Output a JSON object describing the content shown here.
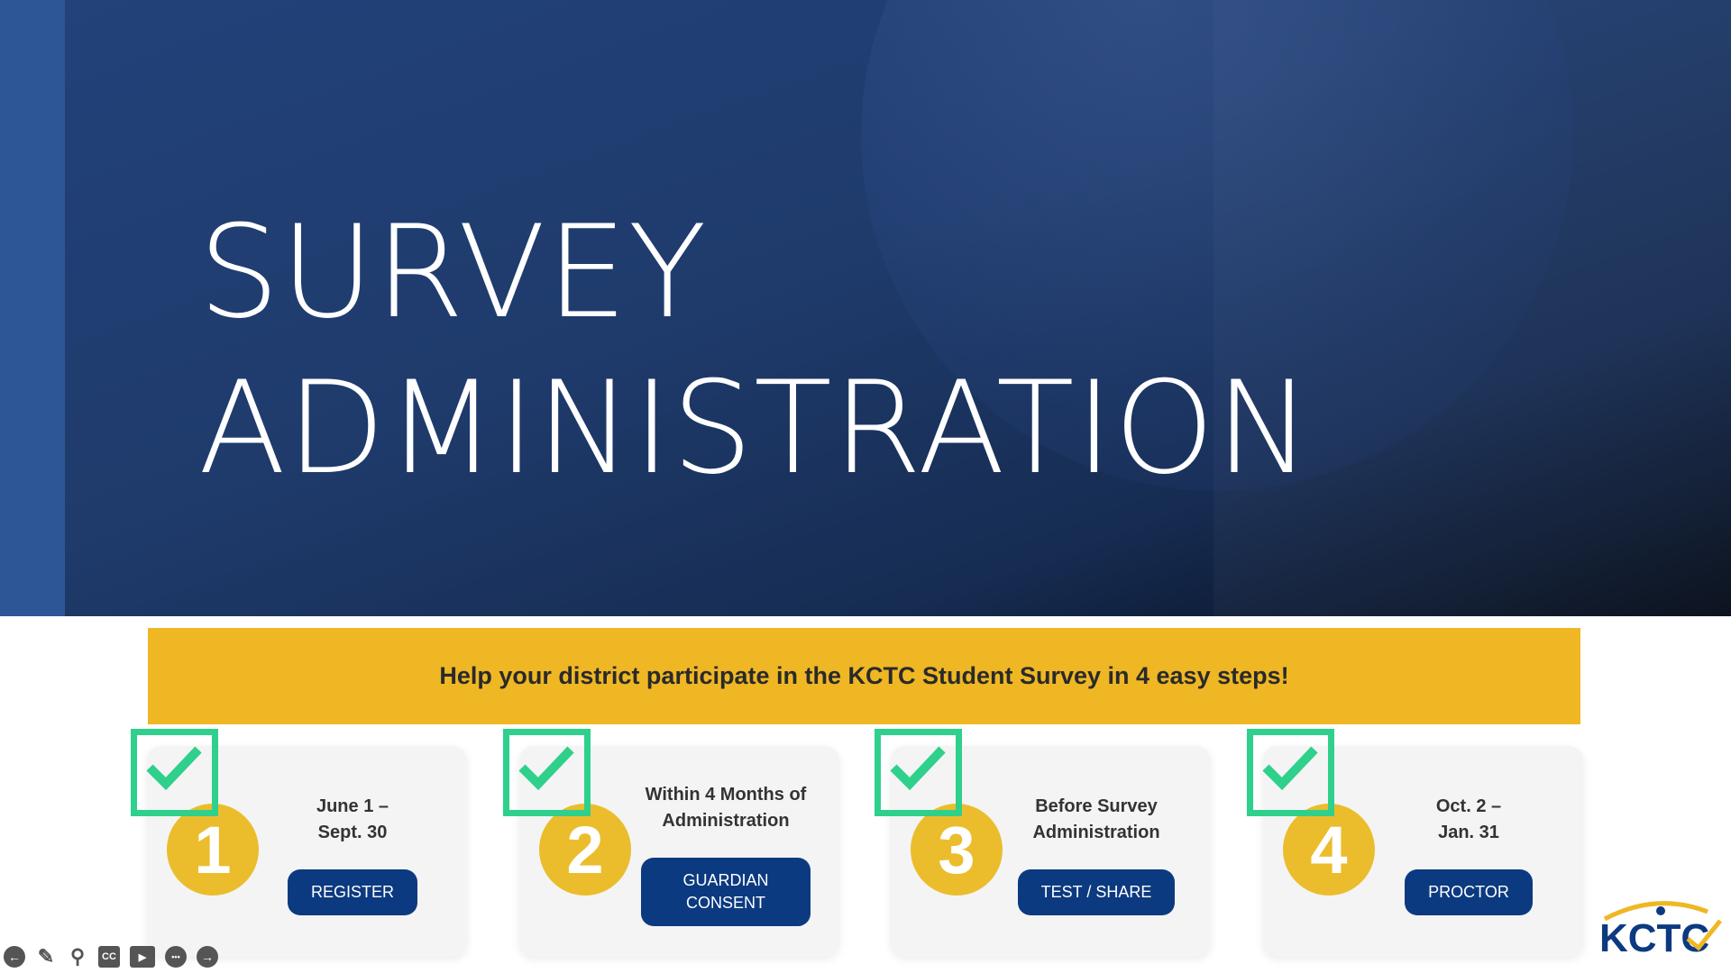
{
  "slide": {
    "title_line1": "SURVEY",
    "title_line2": "ADMINISTRATION"
  },
  "banner": {
    "text": "Help your district participate in the KCTC Student Survey in 4 easy steps!"
  },
  "steps": [
    {
      "number": "1",
      "when": "June 1 –\nSept. 30",
      "button": "REGISTER",
      "completed": true
    },
    {
      "number": "2",
      "when": "Within 4 Months of\nAdministration",
      "button": "GUARDIAN\nCONSENT",
      "completed": true
    },
    {
      "number": "3",
      "when": "Before Survey\nAdministration",
      "button": "TEST / SHARE",
      "completed": true
    },
    {
      "number": "4",
      "when": "Oct. 2 –\nJan. 31",
      "button": "PROCTOR",
      "completed": true
    }
  ],
  "logo": {
    "text": "KCTC"
  },
  "toolbar": {
    "icons": [
      "arrow-left-icon",
      "pencil-icon",
      "magnifier-icon",
      "cc-icon",
      "video-icon",
      "more-icon",
      "arrow-right-icon"
    ],
    "cc_label": "CC",
    "more_label": "•••"
  },
  "colors": {
    "navy": "#0c3a80",
    "yellow": "#efb724",
    "green": "#2fd08c",
    "hero": "#1f3b6c"
  }
}
